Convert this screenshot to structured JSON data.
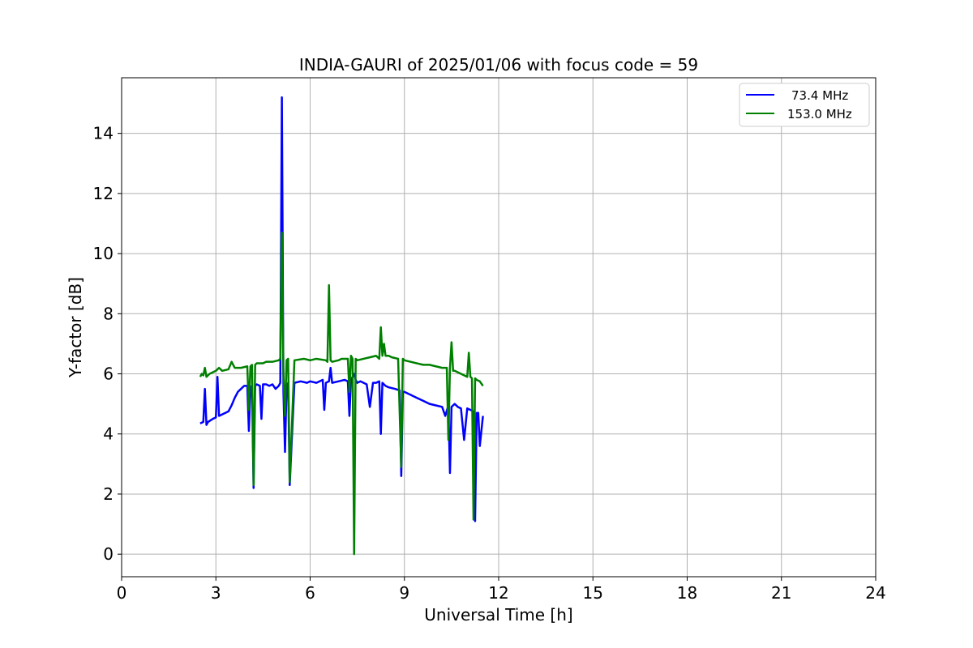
{
  "chart_data": {
    "type": "line",
    "title": "INDIA-GAURI of 2025/01/06 with focus code = 59",
    "xlabel": "Universal Time [h]",
    "ylabel": "Y-factor [dB]",
    "xlim": [
      0,
      24
    ],
    "ylim": [
      -0.75,
      15.85
    ],
    "xticks": [
      0,
      3,
      6,
      9,
      12,
      15,
      18,
      21,
      24
    ],
    "yticks": [
      0,
      2,
      4,
      6,
      8,
      10,
      12,
      14
    ],
    "grid": true,
    "legend_position": "top-right",
    "series": [
      {
        "name": "73.4 MHz",
        "color": "#0000ff",
        "x": [
          2.5,
          2.6,
          2.65,
          2.7,
          2.75,
          2.9,
          3.0,
          3.05,
          3.1,
          3.2,
          3.4,
          3.5,
          3.6,
          3.7,
          3.8,
          3.9,
          4.0,
          4.05,
          4.1,
          4.15,
          4.2,
          4.25,
          4.3,
          4.4,
          4.45,
          4.5,
          4.6,
          4.7,
          4.8,
          4.9,
          5.0,
          5.05,
          5.1,
          5.15,
          5.2,
          5.25,
          5.3,
          5.35,
          5.5,
          5.7,
          5.9,
          6.0,
          6.2,
          6.4,
          6.45,
          6.5,
          6.6,
          6.65,
          6.7,
          6.9,
          7.1,
          7.2,
          7.25,
          7.3,
          7.4,
          7.45,
          7.5,
          7.6,
          7.8,
          7.9,
          8.0,
          8.1,
          8.2,
          8.25,
          8.3,
          8.4,
          8.5,
          8.7,
          8.85,
          8.9,
          8.95,
          9.0,
          9.2,
          9.4,
          9.6,
          9.8,
          10.0,
          10.2,
          10.3,
          10.4,
          10.45,
          10.5,
          10.6,
          10.7,
          10.8,
          10.9,
          11.0,
          11.1,
          11.2,
          11.25,
          11.3,
          11.35,
          11.4,
          11.5
        ],
        "y": [
          4.35,
          4.4,
          5.5,
          4.3,
          4.4,
          4.5,
          4.55,
          5.9,
          4.6,
          4.65,
          4.75,
          4.95,
          5.2,
          5.4,
          5.5,
          5.6,
          5.6,
          4.1,
          5.55,
          5.6,
          2.2,
          5.6,
          5.65,
          5.6,
          4.5,
          5.65,
          5.65,
          5.6,
          5.65,
          5.5,
          5.6,
          5.7,
          15.2,
          5.4,
          3.4,
          5.6,
          5.7,
          2.3,
          5.7,
          5.75,
          5.7,
          5.75,
          5.7,
          5.8,
          4.8,
          5.7,
          5.75,
          6.2,
          5.7,
          5.75,
          5.8,
          5.75,
          4.6,
          5.8,
          6.0,
          5.8,
          5.7,
          5.75,
          5.65,
          4.9,
          5.7,
          5.7,
          5.75,
          4.0,
          5.7,
          5.6,
          5.55,
          5.5,
          5.45,
          2.6,
          5.4,
          5.4,
          5.3,
          5.2,
          5.1,
          5.0,
          4.95,
          4.9,
          4.6,
          4.95,
          2.7,
          4.9,
          5.0,
          4.9,
          4.85,
          3.8,
          4.85,
          4.8,
          4.75,
          1.1,
          4.7,
          4.7,
          3.6,
          4.6
        ]
      },
      {
        "name": "153.0 MHz",
        "color": "#008000",
        "x": [
          2.5,
          2.55,
          2.6,
          2.65,
          2.7,
          2.8,
          3.0,
          3.1,
          3.2,
          3.4,
          3.5,
          3.6,
          3.8,
          4.0,
          4.05,
          4.1,
          4.15,
          4.2,
          4.25,
          4.3,
          4.5,
          4.6,
          4.7,
          4.8,
          5.0,
          5.05,
          5.1,
          5.15,
          5.2,
          5.25,
          5.3,
          5.35,
          5.5,
          5.8,
          6.0,
          6.2,
          6.5,
          6.55,
          6.6,
          6.65,
          6.7,
          6.9,
          7.0,
          7.2,
          7.25,
          7.3,
          7.35,
          7.4,
          7.45,
          7.5,
          7.7,
          7.9,
          8.1,
          8.2,
          8.25,
          8.3,
          8.35,
          8.4,
          8.5,
          8.6,
          8.8,
          8.9,
          8.95,
          9.0,
          9.2,
          9.4,
          9.6,
          9.8,
          10.0,
          10.2,
          10.35,
          10.4,
          10.45,
          10.5,
          10.55,
          10.6,
          10.8,
          11.0,
          11.05,
          11.1,
          11.15,
          11.2,
          11.25,
          11.3,
          11.4,
          11.5
        ],
        "y": [
          5.9,
          6.0,
          5.95,
          6.2,
          5.9,
          6.0,
          6.1,
          6.2,
          6.1,
          6.15,
          6.4,
          6.2,
          6.2,
          6.25,
          4.8,
          6.25,
          6.3,
          2.3,
          6.3,
          6.35,
          6.35,
          6.4,
          6.4,
          6.4,
          6.45,
          6.5,
          10.7,
          6.0,
          4.6,
          6.45,
          6.5,
          2.4,
          6.45,
          6.5,
          6.45,
          6.5,
          6.45,
          6.4,
          8.95,
          6.45,
          6.4,
          6.45,
          6.5,
          6.5,
          5.4,
          6.6,
          6.5,
          0.0,
          6.5,
          6.45,
          6.5,
          6.55,
          6.6,
          6.5,
          7.55,
          6.6,
          7.0,
          6.6,
          6.6,
          6.55,
          6.5,
          2.9,
          6.5,
          6.45,
          6.4,
          6.35,
          6.3,
          6.3,
          6.25,
          6.2,
          6.2,
          3.8,
          6.2,
          7.05,
          6.1,
          6.1,
          6.0,
          5.9,
          6.7,
          5.9,
          5.85,
          1.15,
          5.85,
          5.8,
          5.75,
          5.6
        ]
      }
    ]
  }
}
